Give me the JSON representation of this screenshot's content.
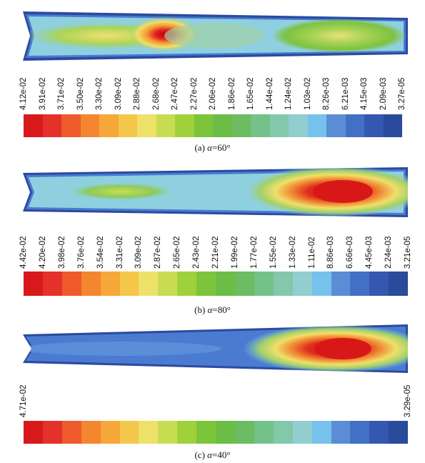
{
  "panels": [
    {
      "caption_prefix": "(a) ",
      "caption_var": "α",
      "caption_value": "=60°",
      "tick_labels": [
        "4.12e-02",
        "3.91e-02",
        "3.71e-02",
        "3.50e-02",
        "3.30e-02",
        "3.09e-02",
        "2.88e-02",
        "2.68e-02",
        "2.47e-02",
        "2.27e-02",
        "2.06e-02",
        "1.86e-02",
        "1.65e-02",
        "1.44e-02",
        "1.24e-02",
        "1.03e-02",
        "8.26e-03",
        "6.21e-03",
        "4.15e-03",
        "2.09e-03",
        "3.27e-05"
      ]
    },
    {
      "caption_prefix": "(b) ",
      "caption_var": "α",
      "caption_value": "=80°",
      "tick_labels": [
        "4.42e-02",
        "4.20e-02",
        "3.98e-02",
        "3.76e-02",
        "3.54e-02",
        "3.31e-02",
        "3.09e-02",
        "2.87e-02",
        "2.65e-02",
        "2.43e-02",
        "2.21e-02",
        "1.99e-02",
        "1.77e-02",
        "1.55e-02",
        "1.33e-02",
        "1.11e-02",
        "8.86e-03",
        "6.66e-03",
        "4.45e-03",
        "2.24e-03",
        "3.21e-05"
      ]
    },
    {
      "caption_prefix": "(c) ",
      "caption_var": "α",
      "caption_value": "=40°",
      "tick_labels": [
        "4.71e-02",
        "3.29e-05"
      ]
    }
  ],
  "colormap": [
    "#d7191c",
    "#e4312a",
    "#ee5a2c",
    "#f3862f",
    "#f6a83a",
    "#f4c74a",
    "#eee16a",
    "#c8dc52",
    "#9fd13b",
    "#7cc53a",
    "#6cbd45",
    "#6dbb62",
    "#74c28a",
    "#84c8ab",
    "#92cdd0",
    "#76c2ec",
    "#5a8dd4",
    "#4170c4",
    "#3457b0",
    "#2a4a9c"
  ],
  "contour_colors": {
    "edge": "#2b4aa0",
    "low": "#4a7bd0",
    "cyan": "#8fd0e0",
    "lightgreen": "#9fd06a",
    "green": "#7dc242",
    "yellow": "#f0e070",
    "orange": "#f29a36",
    "red": "#d81818"
  }
}
